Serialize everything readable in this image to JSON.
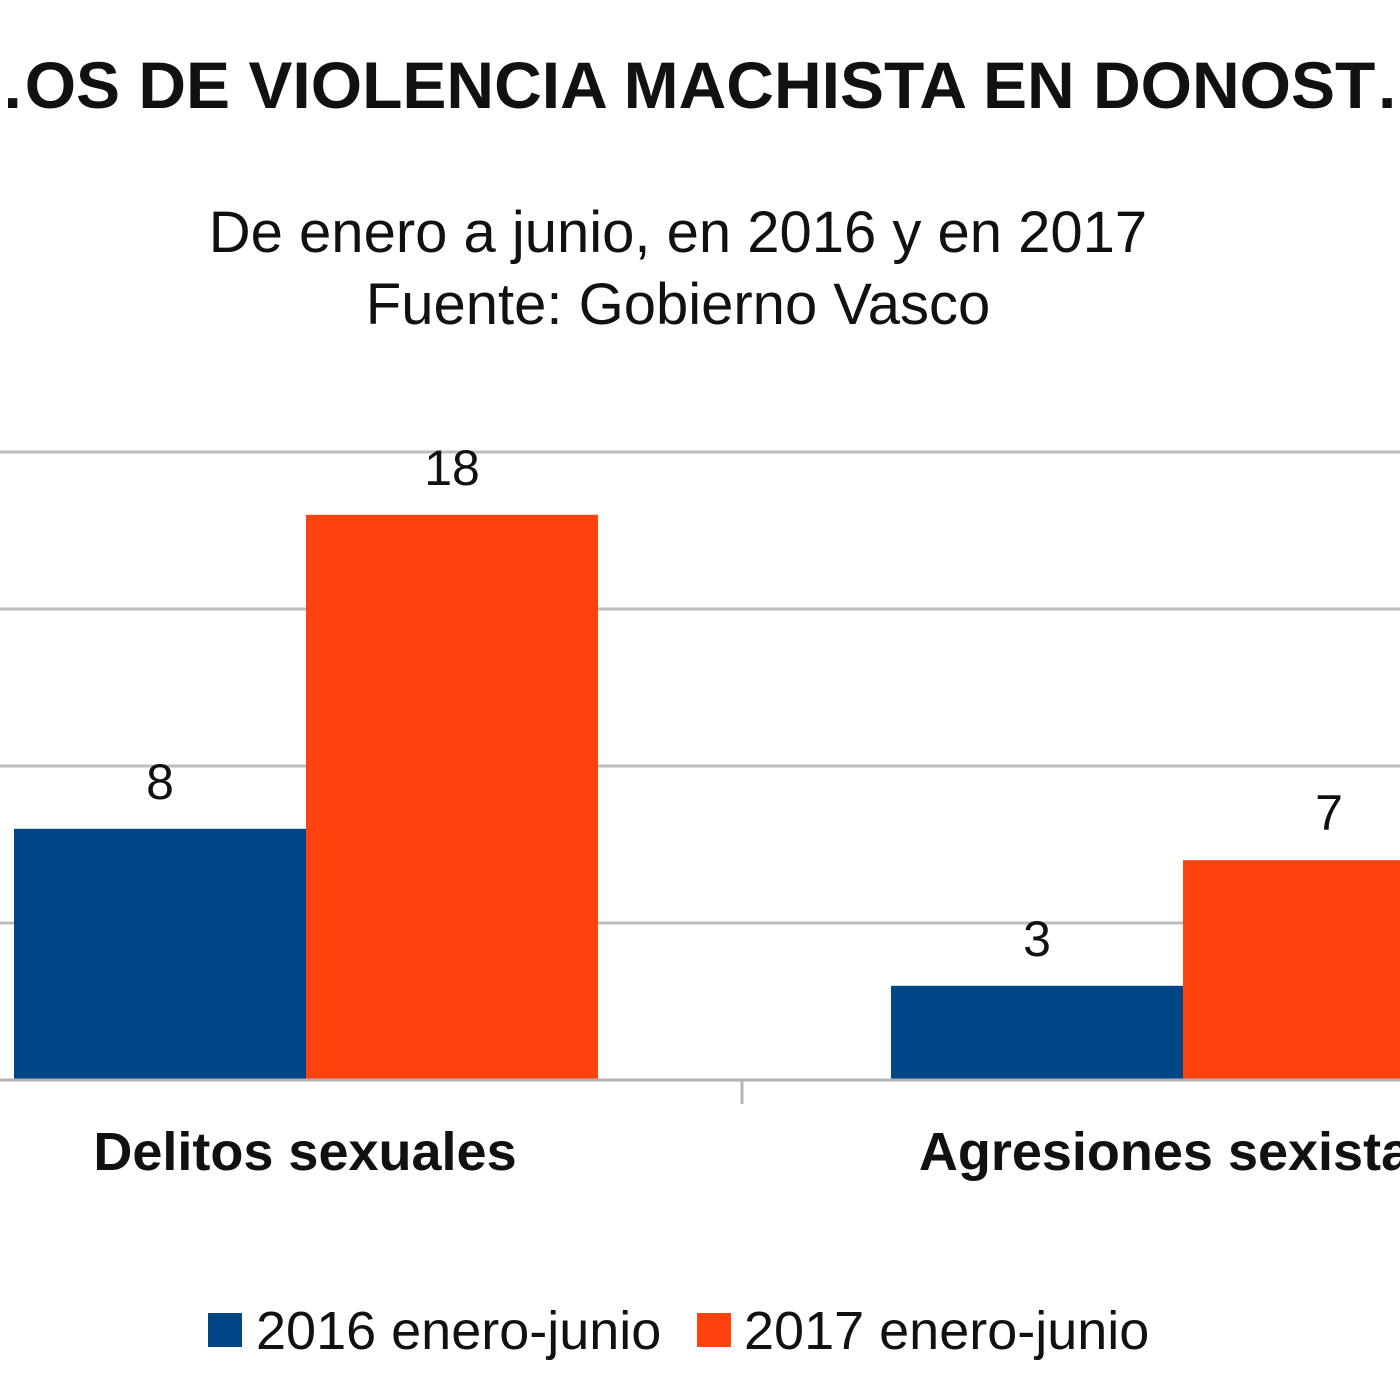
{
  "chart_data": {
    "type": "bar",
    "title": "…OS DE VIOLENCIA MACHISTA EN DONOST…",
    "subtitle_lines": [
      "De enero a junio, en 2016 y en 2017",
      "Fuente: Gobierno Vasco"
    ],
    "categories": [
      "Delitos sexuales",
      "Agresiones sexistas"
    ],
    "series": [
      {
        "name": "2016 enero-junio",
        "values": [
          8,
          3
        ],
        "color": "#004586"
      },
      {
        "name": "2017 enero-junio",
        "values": [
          18,
          7
        ],
        "color": "#ff420e"
      }
    ],
    "ylim": [
      0,
      20
    ],
    "gridlines": [
      5,
      10,
      15,
      20
    ],
    "grid": true,
    "xlabel": "",
    "ylabel": "",
    "legend_position": "bottom"
  }
}
